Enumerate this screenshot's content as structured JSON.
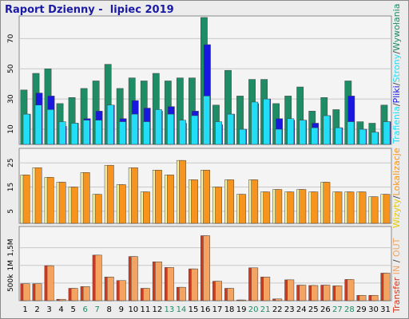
{
  "title": "Raport Dzienny -  lipiec 2019",
  "colors": {
    "background": "#ececec",
    "panel": "#f4f4f4",
    "frame": "#8a8a8a",
    "title": "#1a1aa6",
    "pages": "#1e8c64",
    "files": "#1818e0",
    "hits": "#22ddf6",
    "visits": "#f4f2a0",
    "sites": "#f7941d",
    "kbytes_in": "#d4391f",
    "kbytes_out": "#f4a460",
    "text": "#000000",
    "weekend": "#1e8c64"
  },
  "right_label_1": {
    "parts": [
      {
        "text": "Trafienia",
        "color": "#22ddf6"
      },
      {
        "text": "/",
        "color": "#444444"
      },
      {
        "text": "Pliki",
        "color": "#1818e0"
      },
      {
        "text": "/",
        "color": "#444444"
      },
      {
        "text": "Strony",
        "color": "#22ddf6"
      },
      {
        "text": "/",
        "color": "#444444"
      },
      {
        "text": "Wywołania",
        "color": "#1e8c64"
      }
    ]
  },
  "right_label_2": {
    "parts": [
      {
        "text": "Wizyty",
        "color": "#e8c800"
      },
      {
        "text": "/",
        "color": "#444444"
      },
      {
        "text": "Lokalizacje",
        "color": "#f7941d"
      }
    ]
  },
  "right_label_3": {
    "parts": [
      {
        "text": "Transfer",
        "color": "#d4391f"
      },
      {
        "text": " IN ",
        "color": "#f4a460"
      },
      {
        "text": "/",
        "color": "#444444"
      },
      {
        "text": " OUT",
        "color": "#f4a460"
      }
    ]
  },
  "chart_data": [
    {
      "type": "bar",
      "name": "Trafienia/Pliki/Strony/Wywołania",
      "categories": [
        "1",
        "2",
        "3",
        "4",
        "5",
        "6",
        "7",
        "8",
        "9",
        "10",
        "11",
        "12",
        "13",
        "14",
        "15",
        "16",
        "17",
        "18",
        "19",
        "20",
        "21",
        "22",
        "23",
        "24",
        "25",
        "26",
        "27",
        "28",
        "29",
        "30",
        "31"
      ],
      "weekend_days": [
        "6",
        "7",
        "13",
        "14",
        "20",
        "21",
        "27",
        "28"
      ],
      "y_ticks": [
        10,
        30,
        50,
        70
      ],
      "ylim": [
        0,
        85
      ],
      "series": [
        {
          "name": "Wywołania",
          "values": [
            36,
            47,
            50,
            27,
            31,
            37,
            42,
            53,
            37,
            44,
            42,
            47,
            42,
            44,
            44,
            84,
            26,
            49,
            32,
            43,
            43,
            27,
            32,
            38,
            22,
            31,
            23,
            42,
            15,
            14,
            26
          ]
        },
        {
          "name": "Pliki",
          "values": [
            20,
            34,
            32,
            12,
            14,
            17,
            22,
            26,
            17,
            29,
            24,
            22,
            25,
            14,
            22,
            66,
            13,
            20,
            10,
            27,
            30,
            17,
            16,
            16,
            14,
            19,
            11,
            32,
            10,
            8,
            15
          ]
        },
        {
          "name": "Strony",
          "values": [
            20,
            26,
            23,
            15,
            14,
            16,
            16,
            26,
            15,
            20,
            15,
            23,
            20,
            16,
            19,
            32,
            15,
            20,
            10,
            28,
            30,
            10,
            17,
            16,
            11,
            19,
            11,
            15,
            10,
            8,
            15
          ]
        }
      ]
    },
    {
      "type": "bar",
      "name": "Wizyty/Lokalizacje",
      "categories": [
        "1",
        "2",
        "3",
        "4",
        "5",
        "6",
        "7",
        "8",
        "9",
        "10",
        "11",
        "12",
        "13",
        "14",
        "15",
        "16",
        "17",
        "18",
        "19",
        "20",
        "21",
        "22",
        "23",
        "24",
        "25",
        "26",
        "27",
        "28",
        "29",
        "30",
        "31"
      ],
      "y_ticks": [
        5,
        15,
        25
      ],
      "ylim": [
        0,
        31
      ],
      "series": [
        {
          "name": "Wizyty",
          "values": [
            20,
            23,
            19,
            17,
            15,
            21,
            12,
            24,
            16,
            23,
            13,
            22,
            20,
            26,
            18,
            22,
            15,
            18,
            12,
            18,
            13,
            14,
            13,
            14,
            13,
            17,
            13,
            13,
            13,
            11,
            12
          ]
        },
        {
          "name": "Lokalizacje",
          "values": [
            20,
            23,
            19,
            17,
            15,
            21,
            12,
            24,
            16,
            23,
            13,
            22,
            20,
            26,
            18,
            22,
            15,
            18,
            12,
            18,
            13,
            14,
            13,
            14,
            13,
            17,
            13,
            13,
            13,
            11,
            12
          ]
        }
      ]
    },
    {
      "type": "bar",
      "name": "Transfer IN / OUT",
      "categories": [
        "1",
        "2",
        "3",
        "4",
        "5",
        "6",
        "7",
        "8",
        "9",
        "10",
        "11",
        "12",
        "13",
        "14",
        "15",
        "16",
        "17",
        "18",
        "19",
        "20",
        "21",
        "22",
        "23",
        "24",
        "25",
        "26",
        "27",
        "28",
        "29",
        "30",
        "31"
      ],
      "y_ticks": [
        500,
        1000,
        1500
      ],
      "y_tick_labels": [
        "500k",
        "1M",
        "1,5M"
      ],
      "ylim": [
        0,
        2100
      ],
      "series": [
        {
          "name": "Transfer IN",
          "values": [
            480,
            480,
            990,
            40,
            350,
            400,
            1290,
            670,
            570,
            1250,
            350,
            1100,
            940,
            380,
            900,
            1840,
            550,
            350,
            20,
            930,
            670,
            50,
            590,
            440,
            430,
            440,
            420,
            600,
            150,
            150,
            780
          ]
        },
        {
          "name": "Transfer OUT",
          "values": [
            480,
            480,
            990,
            40,
            350,
            400,
            1290,
            670,
            570,
            1250,
            350,
            1100,
            940,
            380,
            900,
            1840,
            550,
            350,
            20,
            930,
            670,
            50,
            590,
            440,
            430,
            440,
            420,
            600,
            150,
            150,
            780
          ]
        }
      ]
    }
  ]
}
